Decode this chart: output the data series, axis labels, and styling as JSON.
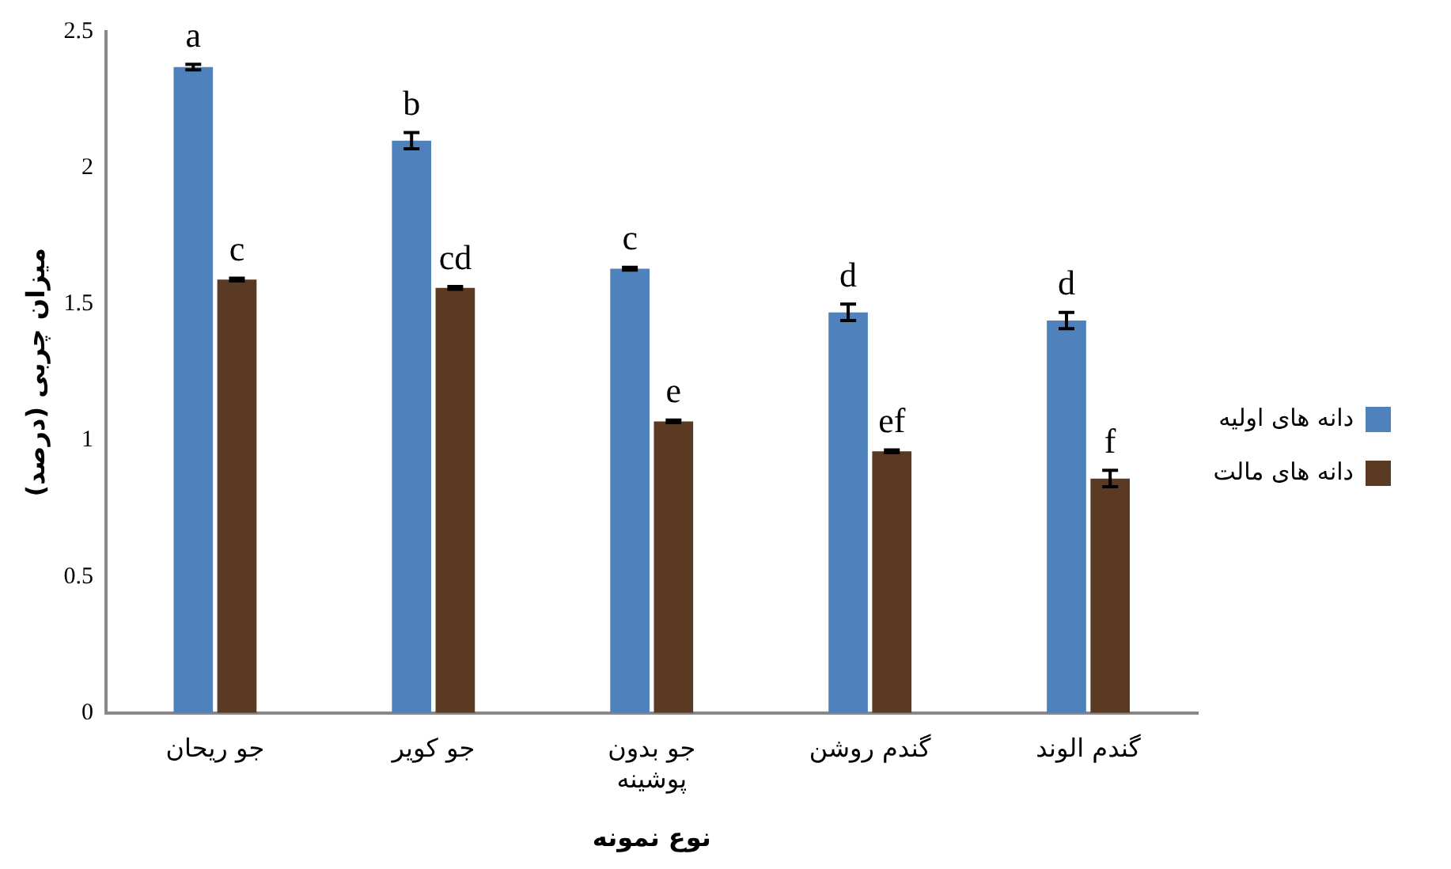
{
  "chart_data": {
    "type": "bar",
    "xlabel": "نوع نمونه",
    "ylabel": "میزان چربی (درصد)",
    "categories": [
      "جو ریحان",
      "جو کویر",
      "جو بدون پوشینه",
      "گندم روشن",
      "گندم الوند"
    ],
    "series": [
      {
        "name": "دانه های اولیه",
        "color": "#4f81bd",
        "values": [
          2.37,
          2.1,
          1.63,
          1.47,
          1.44
        ],
        "errors": [
          0.01,
          0.03,
          0.005,
          0.03,
          0.03
        ]
      },
      {
        "name": "دانه های مالت",
        "color": "#5a3a22",
        "values": [
          1.59,
          1.56,
          1.07,
          0.96,
          0.86
        ],
        "errors": [
          0.005,
          0.005,
          0.005,
          0.005,
          0.03
        ]
      }
    ],
    "annotations": [
      {
        "text": "a",
        "x": "جو ریحان",
        "y": 2.37
      },
      {
        "text": "c",
        "x": "جو ریحان",
        "y": 1.59
      },
      {
        "text": "b",
        "x": "جو کویر",
        "y": 2.1
      },
      {
        "text": "cd",
        "x": "جو کویر",
        "y": 1.56
      },
      {
        "text": "c",
        "x": "جو بدون پوشینه",
        "y": 1.63
      },
      {
        "text": "e",
        "x": "جو بدون پوشینه",
        "y": 1.07
      },
      {
        "text": "d",
        "x": "گندم روشن",
        "y": 1.47
      },
      {
        "text": "ef",
        "x": "گندم روشن",
        "y": 0.96
      },
      {
        "text": "d",
        "x": "گندم الوند",
        "y": 1.44
      },
      {
        "text": "f",
        "x": "گندم الوند",
        "y": 0.86
      }
    ],
    "ylim": [
      0,
      2.5
    ],
    "yticks": [
      0,
      0.5,
      1,
      1.5,
      2,
      2.5
    ],
    "grid": false,
    "legend": "right"
  }
}
